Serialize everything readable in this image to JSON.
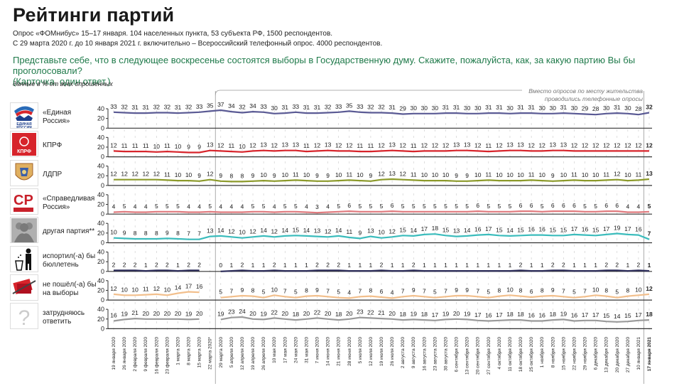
{
  "header": {
    "title": "Рейтинги партий",
    "subtitle_1": "Опрос «ФОМнибус» 15–17 января. 104 населенных пункта, 53 субъекта РФ, 1500 респондентов.",
    "subtitle_2": "С 29 марта 2020 г. до 10 января 2021 г. включительно – Всероссийский телефонный опрос. 4000 респондентов.",
    "question_1": "Представьте себе, что в следующее воскресенье состоятся выборы в Государственную думу. Скажите, пожалуйста, как, за какую партию Вы бы проголосовали?",
    "question_2": "(Карточка, один ответ.)",
    "units": "данные в % от всех опрошенных",
    "note_1": "Вместо опросов по месту жительства",
    "note_2": "проводились телефонные опросы"
  },
  "chart_data": {
    "type": "line",
    "title": "Рейтинги партий",
    "ylabel": "%",
    "ylim": [
      0,
      40
    ],
    "yticks": [
      0,
      20,
      40
    ],
    "grid": true,
    "phone_survey_period": [
      "29 марта 2020",
      "10 января 2021"
    ],
    "x": [
      "19 января 2020",
      "26 января 2020",
      "2 февраля 2020",
      "9 февраля 2020",
      "16 февраля 2020",
      "23 февраля 2020",
      "1 марта 2020",
      "8 марта 2020",
      "15 марта 2020",
      "22 марта 2020*",
      "29 марта 2020",
      "5 апреля 2020",
      "12 апреля 2020",
      "19 апреля 2020",
      "26 апреля 2020",
      "10 мая 2020",
      "17 мая 2020",
      "24 мая 2020",
      "31 мая 2020",
      "7 июня 2020",
      "14 июня 2020",
      "21 июня 2020",
      "28 июня 2020",
      "5 июля 2020",
      "12 июля 2020",
      "19 июля 2020",
      "26 июля 2020",
      "2 августа 2020",
      "9 августа 2020",
      "16 августа 2020",
      "23 августа 2020",
      "30 августа 2020",
      "6 сентября 2020",
      "13 сентября 2020",
      "20 сентября 2020",
      "27 сентября 2020",
      "4 октября 2020",
      "11 октября 2020",
      "18 октября 2020",
      "25 октября 2020",
      "1 ноября 2020",
      "8 ноября 2020",
      "15 ноября 2020",
      "22 ноября 2020",
      "29 ноября 2020",
      "6 декабря 2020",
      "13 декабря 2020",
      "20 декабря 2020",
      "27 декабря 2020",
      "10 января 2021",
      "17 января 2021"
    ],
    "series": [
      {
        "name": "«Единая Россия»",
        "label_lines": [
          "«Единая",
          "Россия»"
        ],
        "icon": "united-russia-logo",
        "color": "#5a5a94",
        "values": [
          33,
          32,
          31,
          31,
          32,
          32,
          31,
          32,
          33,
          35,
          37,
          34,
          32,
          34,
          33,
          30,
          31,
          33,
          31,
          31,
          32,
          33,
          35,
          33,
          32,
          32,
          31,
          29,
          30,
          30,
          30,
          31,
          31,
          30,
          30,
          31,
          31,
          30,
          31,
          31,
          30,
          30,
          31,
          30,
          29,
          28,
          30,
          31,
          30,
          28,
          32
        ]
      },
      {
        "name": "КПРФ",
        "label_lines": [
          "КПРФ"
        ],
        "icon": "kprf-logo",
        "color": "#d7242b",
        "values": [
          12,
          11,
          11,
          11,
          10,
          11,
          10,
          9,
          9,
          13,
          12,
          11,
          10,
          12,
          13,
          12,
          13,
          13,
          11,
          12,
          13,
          12,
          12,
          11,
          11,
          12,
          13,
          12,
          11,
          12,
          12,
          12,
          13,
          13,
          12,
          11,
          12,
          13,
          13,
          12,
          12,
          13,
          13,
          12,
          12,
          12,
          12,
          12,
          12,
          12,
          12
        ]
      },
      {
        "name": "ЛДПР",
        "label_lines": [
          "ЛДПР"
        ],
        "icon": "ldpr-logo",
        "color": "#8c9a2a",
        "values": [
          12,
          12,
          12,
          12,
          12,
          11,
          10,
          10,
          9,
          12,
          9,
          8,
          8,
          9,
          10,
          9,
          10,
          11,
          10,
          9,
          9,
          10,
          11,
          10,
          9,
          12,
          13,
          12,
          11,
          10,
          10,
          10,
          9,
          9,
          10,
          11,
          10,
          10,
          10,
          11,
          10,
          9,
          10,
          11,
          10,
          10,
          11,
          12,
          10,
          11,
          13
        ]
      },
      {
        "name": "«Справедливая Россия»",
        "label_lines": [
          "«Справедливая",
          "Россия»"
        ],
        "icon": "sr-logo",
        "color": "#e07a7e",
        "values": [
          4,
          5,
          4,
          4,
          5,
          5,
          5,
          4,
          4,
          5,
          4,
          4,
          4,
          5,
          5,
          4,
          5,
          5,
          4,
          3,
          4,
          5,
          6,
          5,
          5,
          5,
          6,
          5,
          5,
          5,
          5,
          5,
          5,
          5,
          6,
          5,
          5,
          5,
          6,
          6,
          5,
          6,
          6,
          6,
          5,
          5,
          6,
          6,
          4,
          4,
          5
        ]
      },
      {
        "name": "другая партия**",
        "label_lines": [
          "другая партия**"
        ],
        "icon": "people-icon",
        "color": "#3bbcbc",
        "values": [
          10,
          9,
          8,
          8,
          8,
          9,
          8,
          7,
          7,
          13,
          14,
          12,
          10,
          12,
          14,
          12,
          14,
          15,
          14,
          13,
          12,
          14,
          11,
          9,
          13,
          10,
          12,
          15,
          14,
          17,
          18,
          15,
          13,
          14,
          16,
          17,
          15,
          14,
          15,
          16,
          16,
          15,
          15,
          17,
          16,
          15,
          17,
          19,
          17,
          16,
          7
        ]
      },
      {
        "name": "испортил(-а) бы бюллетень",
        "label_lines": [
          "испортил(-а) бы",
          "бюллетень"
        ],
        "icon": "trash-person-icon",
        "color": "#2d2d5a",
        "values": [
          2,
          2,
          2,
          1,
          2,
          2,
          1,
          2,
          2,
          null,
          0,
          1,
          2,
          1,
          1,
          2,
          1,
          1,
          1,
          2,
          2,
          2,
          1,
          1,
          1,
          2,
          1,
          1,
          2,
          1,
          1,
          1,
          1,
          1,
          1,
          1,
          1,
          1,
          2,
          1,
          1,
          2,
          2,
          1,
          1,
          1,
          2,
          2,
          1,
          2,
          1
        ]
      },
      {
        "name": "не пошёл(-а) бы на выборы",
        "label_lines": [
          "не пошёл(-а) бы",
          "на выборы"
        ],
        "icon": "no-vote-icon",
        "color": "#f2bf8c",
        "values": [
          12,
          10,
          10,
          11,
          12,
          10,
          14,
          17,
          16,
          null,
          5,
          7,
          9,
          8,
          5,
          10,
          7,
          5,
          8,
          9,
          7,
          5,
          4,
          7,
          8,
          6,
          4,
          7,
          9,
          7,
          5,
          7,
          9,
          9,
          7,
          5,
          8,
          10,
          8,
          6,
          8,
          9,
          7,
          5,
          7,
          10,
          8,
          5,
          8,
          10,
          12
        ]
      },
      {
        "name": "затрудняюсь ответить",
        "label_lines": [
          "затрудняюсь",
          "ответить"
        ],
        "icon": "question-icon",
        "color": "#9a9a9a",
        "values": [
          16,
          19,
          21,
          20,
          20,
          20,
          20,
          19,
          20,
          null,
          19,
          23,
          24,
          20,
          19,
          22,
          20,
          18,
          20,
          22,
          20,
          18,
          20,
          23,
          22,
          21,
          20,
          18,
          19,
          18,
          17,
          19,
          20,
          19,
          17,
          16,
          17,
          18,
          18,
          16,
          16,
          18,
          19,
          16,
          17,
          17,
          15,
          14,
          15,
          17,
          18
        ]
      }
    ]
  }
}
